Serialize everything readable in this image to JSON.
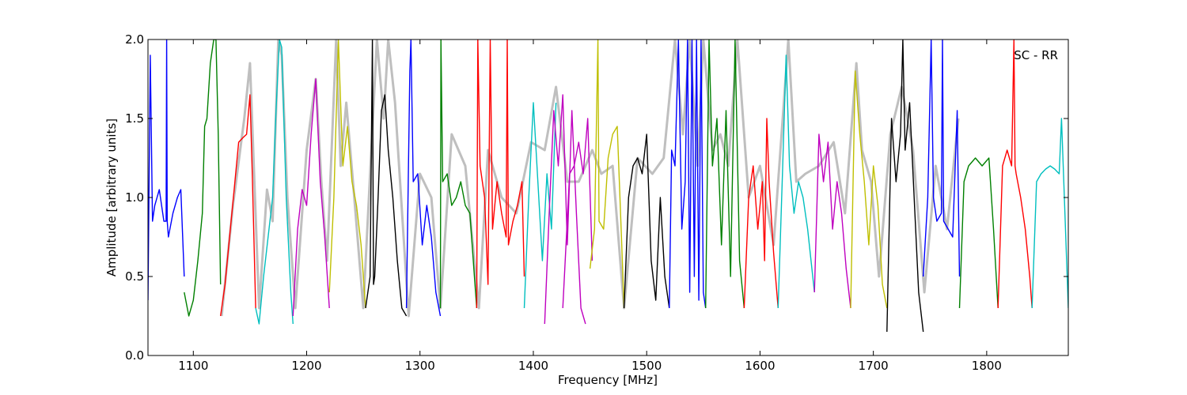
{
  "chart_data": {
    "type": "line",
    "title": "",
    "annotation": "SC - RR",
    "xlabel": "Frequency [MHz]",
    "ylabel": "Amplitude [arbitrary units]",
    "xlim": [
      1060,
      1872
    ],
    "ylim": [
      0.0,
      2.0
    ],
    "xticks": [
      1100,
      1200,
      1300,
      1400,
      1500,
      1600,
      1700,
      1800
    ],
    "yticks": [
      0.0,
      0.5,
      1.0,
      1.5,
      2.0
    ],
    "xtick_labels": [
      "1100",
      "1200",
      "1300",
      "1400",
      "1500",
      "1600",
      "1700",
      "1800"
    ],
    "ytick_labels": [
      "0.0",
      "0.5",
      "1.0",
      "1.5",
      "2.0"
    ],
    "grid": false,
    "legend": "none",
    "background_series": {
      "color": "#bfbfbf",
      "x": [
        1125,
        1135,
        1145,
        1150,
        1158,
        1165,
        1170,
        1175,
        1178,
        1183,
        1190,
        1200,
        1208,
        1213,
        1218,
        1226,
        1230,
        1235,
        1242,
        1250,
        1262,
        1268,
        1272,
        1278,
        1290,
        1300,
        1310,
        1318,
        1328,
        1340,
        1352,
        1360,
        1372,
        1385,
        1398,
        1410,
        1420,
        1430,
        1440,
        1452,
        1460,
        1470,
        1480,
        1492,
        1505,
        1515,
        1525,
        1532,
        1538,
        1545,
        1550,
        1558,
        1565,
        1572,
        1580,
        1590,
        1600,
        1612,
        1620,
        1625,
        1632,
        1640,
        1652,
        1665,
        1675,
        1685,
        1690,
        1698,
        1705,
        1715,
        1725,
        1735,
        1745,
        1755,
        1765,
        1775
      ],
      "y": [
        0.25,
        0.95,
        1.5,
        1.85,
        0.3,
        1.05,
        0.85,
        2.0,
        1.9,
        1.0,
        0.3,
        1.3,
        1.75,
        1.1,
        0.6,
        2.0,
        1.2,
        1.6,
        1.0,
        0.3,
        2.0,
        1.5,
        2.0,
        1.6,
        0.25,
        1.15,
        1.0,
        0.3,
        1.4,
        1.2,
        0.3,
        1.3,
        1.0,
        0.9,
        1.35,
        1.3,
        1.7,
        1.1,
        1.1,
        1.3,
        1.15,
        1.2,
        0.3,
        1.25,
        1.15,
        1.25,
        2.0,
        1.4,
        2.0,
        1.2,
        2.0,
        1.3,
        1.4,
        1.2,
        2.0,
        1.0,
        1.2,
        0.7,
        1.5,
        2.0,
        1.1,
        1.15,
        1.2,
        1.35,
        0.9,
        1.85,
        1.3,
        1.1,
        0.5,
        1.4,
        1.7,
        1.3,
        0.4,
        1.2,
        0.8,
        1.5
      ]
    },
    "series": [
      {
        "color": "#0000ff",
        "x": [
          1060,
          1062,
          1064,
          1066,
          1070,
          1074,
          1076,
          1076.5,
          1077,
          1078,
          1082,
          1086,
          1089,
          1092
        ],
        "y": [
          0.35,
          1.9,
          0.85,
          0.95,
          1.05,
          0.85,
          0.85,
          2.0,
          0.85,
          0.75,
          0.9,
          1.0,
          1.05,
          0.5
        ]
      },
      {
        "color": "#008000",
        "x": [
          1092,
          1096,
          1100,
          1104,
          1108,
          1110,
          1112,
          1115,
          1118,
          1120,
          1122,
          1124
        ],
        "y": [
          0.4,
          0.25,
          0.35,
          0.6,
          0.9,
          1.45,
          1.5,
          1.85,
          2.0,
          2.0,
          1.4,
          0.45
        ]
      },
      {
        "color": "#ff0000",
        "x": [
          1124,
          1128,
          1132,
          1136,
          1140,
          1144,
          1147,
          1150,
          1152,
          1155
        ],
        "y": [
          0.25,
          0.45,
          0.75,
          1.05,
          1.35,
          1.38,
          1.4,
          1.65,
          1.15,
          0.3
        ]
      },
      {
        "color": "#00bfbf",
        "x": [
          1155,
          1158,
          1162,
          1166,
          1170,
          1173,
          1176,
          1178,
          1182,
          1186,
          1188
        ],
        "y": [
          0.3,
          0.2,
          0.5,
          0.75,
          1.0,
          1.55,
          2.0,
          1.95,
          1.0,
          0.4,
          0.2
        ]
      },
      {
        "color": "#bf00bf",
        "x": [
          1188,
          1192,
          1196,
          1200,
          1204,
          1208,
          1212,
          1216,
          1220
        ],
        "y": [
          0.25,
          0.8,
          1.05,
          0.95,
          1.4,
          1.75,
          1.1,
          0.75,
          0.3
        ]
      },
      {
        "color": "#bfbf00",
        "x": [
          1220,
          1224,
          1228,
          1232,
          1236,
          1240,
          1244,
          1248,
          1252
        ],
        "y": [
          0.4,
          1.0,
          2.0,
          1.2,
          1.45,
          1.1,
          0.95,
          0.7,
          0.3
        ]
      },
      {
        "color": "#000000",
        "x": [
          1252,
          1256,
          1258,
          1259,
          1260,
          1263,
          1266,
          1269,
          1272,
          1276,
          1280,
          1284,
          1288
        ],
        "y": [
          0.3,
          0.5,
          2.0,
          0.45,
          0.5,
          1.0,
          1.55,
          1.65,
          1.3,
          1.0,
          0.6,
          0.3,
          0.25
        ]
      },
      {
        "color": "#0000ff",
        "x": [
          1288,
          1291,
          1292,
          1294,
          1298,
          1302,
          1306,
          1310,
          1314,
          1318
        ],
        "y": [
          0.3,
          1.8,
          2.0,
          1.1,
          1.15,
          0.7,
          0.95,
          0.75,
          0.4,
          0.25
        ]
      },
      {
        "color": "#008000",
        "x": [
          1318,
          1318.5,
          1320,
          1324,
          1328,
          1332,
          1336,
          1340,
          1344,
          1348,
          1350
        ],
        "y": [
          0.3,
          2.0,
          1.1,
          1.15,
          0.95,
          1.0,
          1.1,
          0.95,
          0.9,
          0.5,
          0.3
        ]
      },
      {
        "color": "#ff0000",
        "x": [
          1350,
          1351,
          1353,
          1357,
          1360,
          1362,
          1364,
          1368,
          1372,
          1376,
          1377,
          1378,
          1382,
          1386,
          1390,
          1392
        ],
        "y": [
          0.3,
          2.0,
          1.2,
          1.0,
          0.45,
          2.0,
          0.8,
          1.1,
          0.9,
          0.75,
          2.0,
          0.7,
          0.85,
          0.95,
          1.1,
          0.5
        ]
      },
      {
        "color": "#00bfbf",
        "x": [
          1392,
          1396,
          1400,
          1404,
          1408,
          1412,
          1416,
          1420
        ],
        "y": [
          0.3,
          1.0,
          1.6,
          1.1,
          0.6,
          1.15,
          0.8,
          1.6
        ]
      },
      {
        "color": "#bf00bf",
        "x": [
          1410,
          1414,
          1418,
          1422,
          1426,
          1430,
          1434,
          1438,
          1442,
          1446
        ],
        "y": [
          0.2,
          0.9,
          1.55,
          1.2,
          1.65,
          0.7,
          1.55,
          0.9,
          0.3,
          0.2
        ]
      },
      {
        "color": "#bf00bf",
        "x": [
          1426,
          1432,
          1436,
          1440,
          1444,
          1448,
          1452
        ],
        "y": [
          0.3,
          1.15,
          1.2,
          1.35,
          1.15,
          1.5,
          0.6
        ]
      },
      {
        "color": "#bfbf00",
        "x": [
          1450,
          1454,
          1457,
          1458,
          1462,
          1466,
          1470,
          1474,
          1478,
          1480
        ],
        "y": [
          0.55,
          0.8,
          2.0,
          0.85,
          0.8,
          1.25,
          1.4,
          1.45,
          0.7,
          0.3
        ]
      },
      {
        "color": "#000000",
        "x": [
          1480,
          1484,
          1488,
          1492,
          1496,
          1500,
          1504,
          1508,
          1512,
          1516,
          1520
        ],
        "y": [
          0.3,
          1.0,
          1.2,
          1.25,
          1.15,
          1.4,
          0.6,
          0.35,
          1.0,
          0.5,
          0.3
        ]
      },
      {
        "color": "#0000ff",
        "x": [
          1520,
          1522,
          1525,
          1528,
          1531,
          1534,
          1536,
          1538,
          1540,
          1542,
          1544,
          1546,
          1548,
          1550,
          1552
        ],
        "y": [
          0.3,
          1.3,
          1.2,
          2.0,
          0.8,
          1.1,
          2.0,
          0.4,
          2.0,
          0.5,
          2.0,
          0.35,
          2.0,
          0.4,
          0.3
        ]
      },
      {
        "color": "#008000",
        "x": [
          1552,
          1555,
          1558,
          1562,
          1566,
          1570,
          1574,
          1578,
          1582,
          1586
        ],
        "y": [
          0.3,
          2.0,
          1.2,
          1.5,
          0.7,
          1.55,
          0.5,
          2.0,
          0.6,
          0.3
        ]
      },
      {
        "color": "#ff0000",
        "x": [
          1586,
          1590,
          1594,
          1598,
          1602,
          1604,
          1606,
          1608,
          1612,
          1616
        ],
        "y": [
          0.3,
          1.0,
          1.2,
          0.8,
          1.1,
          0.6,
          1.5,
          1.1,
          0.65,
          0.3
        ]
      },
      {
        "color": "#00bfbf",
        "x": [
          1616,
          1620,
          1623,
          1626,
          1630,
          1634,
          1638,
          1642,
          1648
        ],
        "y": [
          0.3,
          1.2,
          1.9,
          1.2,
          0.9,
          1.1,
          1.0,
          0.8,
          0.4
        ]
      },
      {
        "color": "#bf00bf",
        "x": [
          1648,
          1652,
          1656,
          1660,
          1664,
          1668,
          1672,
          1676,
          1680
        ],
        "y": [
          0.4,
          1.4,
          1.1,
          1.35,
          0.8,
          1.1,
          0.9,
          0.55,
          0.3
        ]
      },
      {
        "color": "#bfbf00",
        "x": [
          1680,
          1684,
          1688,
          1692,
          1696,
          1700,
          1704,
          1708,
          1712
        ],
        "y": [
          0.3,
          1.8,
          1.4,
          1.1,
          0.7,
          1.2,
          0.95,
          0.45,
          0.3
        ]
      },
      {
        "color": "#000000",
        "x": [
          1712,
          1716,
          1720,
          1724,
          1726,
          1728,
          1732,
          1736,
          1740,
          1744
        ],
        "y": [
          0.15,
          1.5,
          1.1,
          1.4,
          2.0,
          1.3,
          1.6,
          1.0,
          0.4,
          0.15
        ]
      },
      {
        "color": "#0000ff",
        "x": [
          1744,
          1748,
          1751,
          1753,
          1756,
          1760,
          1761,
          1762,
          1766,
          1770,
          1774,
          1776
        ],
        "y": [
          0.5,
          1.0,
          2.0,
          1.0,
          0.85,
          0.9,
          2.0,
          0.85,
          0.8,
          0.75,
          1.55,
          0.5
        ]
      },
      {
        "color": "#008000",
        "x": [
          1776,
          1780,
          1784,
          1790,
          1796,
          1802,
          1806,
          1810
        ],
        "y": [
          0.3,
          1.1,
          1.2,
          1.25,
          1.2,
          1.25,
          0.8,
          0.3
        ]
      },
      {
        "color": "#ff0000",
        "x": [
          1810,
          1814,
          1818,
          1822,
          1824,
          1825,
          1826,
          1830,
          1834,
          1838,
          1840
        ],
        "y": [
          0.3,
          1.2,
          1.3,
          1.2,
          2.0,
          1.2,
          1.15,
          1.0,
          0.8,
          0.5,
          0.3
        ]
      },
      {
        "color": "#00bfbf",
        "x": [
          1840,
          1844,
          1848,
          1852,
          1856,
          1860,
          1864,
          1866,
          1868,
          1872
        ],
        "y": [
          0.3,
          1.1,
          1.15,
          1.18,
          1.2,
          1.18,
          1.15,
          1.5,
          1.1,
          0.3
        ]
      }
    ]
  }
}
